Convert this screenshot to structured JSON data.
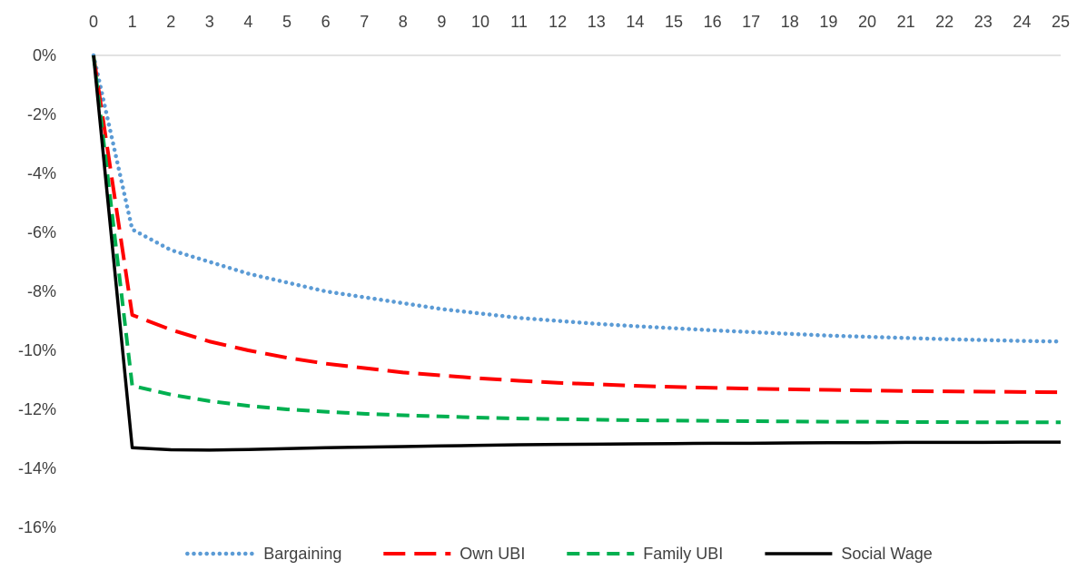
{
  "chart_data": {
    "type": "line",
    "title": "",
    "xlabel": "",
    "ylabel": "",
    "x": [
      0,
      1,
      2,
      3,
      4,
      5,
      6,
      7,
      8,
      9,
      10,
      11,
      12,
      13,
      14,
      15,
      16,
      17,
      18,
      19,
      20,
      21,
      22,
      23,
      24,
      25
    ],
    "x_tick_labels": [
      "0",
      "1",
      "2",
      "3",
      "4",
      "5",
      "6",
      "7",
      "8",
      "9",
      "10",
      "11",
      "12",
      "13",
      "14",
      "15",
      "16",
      "17",
      "18",
      "19",
      "20",
      "21",
      "22",
      "23",
      "24",
      "25"
    ],
    "xlim": [
      0,
      25
    ],
    "x_axis_position": "top",
    "y_tick_values": [
      0,
      -2,
      -4,
      -6,
      -8,
      -10,
      -12,
      -14,
      -16
    ],
    "y_tick_labels": [
      "0%",
      "-2%",
      "-4%",
      "-6%",
      "-8%",
      "-10%",
      "-12%",
      "-14%",
      "-16%"
    ],
    "ylim": [
      -16,
      0
    ],
    "y_unit": "%",
    "grid": false,
    "legend_position": "bottom",
    "series": [
      {
        "name": "Bargaining",
        "color": "#5B9BD5",
        "style": "dotted",
        "values": [
          0,
          -5.9,
          -6.6,
          -7.0,
          -7.4,
          -7.7,
          -8.0,
          -8.2,
          -8.4,
          -8.6,
          -8.75,
          -8.9,
          -9.0,
          -9.1,
          -9.18,
          -9.25,
          -9.32,
          -9.38,
          -9.44,
          -9.5,
          -9.54,
          -9.58,
          -9.62,
          -9.65,
          -9.68,
          -9.7
        ]
      },
      {
        "name": "Own UBI",
        "color": "#FF0000",
        "style": "dashed",
        "values": [
          0,
          -8.8,
          -9.3,
          -9.7,
          -10.0,
          -10.25,
          -10.45,
          -10.6,
          -10.75,
          -10.85,
          -10.95,
          -11.03,
          -11.1,
          -11.15,
          -11.2,
          -11.24,
          -11.27,
          -11.3,
          -11.32,
          -11.34,
          -11.36,
          -11.38,
          -11.39,
          -11.4,
          -11.41,
          -11.42
        ]
      },
      {
        "name": "Family UBI",
        "color": "#00B050",
        "style": "dashed",
        "values": [
          0,
          -11.2,
          -11.5,
          -11.72,
          -11.88,
          -12.0,
          -12.08,
          -12.15,
          -12.2,
          -12.24,
          -12.28,
          -12.31,
          -12.33,
          -12.35,
          -12.37,
          -12.38,
          -12.39,
          -12.4,
          -12.41,
          -12.42,
          -12.42,
          -12.43,
          -12.43,
          -12.44,
          -12.44,
          -12.44
        ]
      },
      {
        "name": "Social Wage",
        "color": "#000000",
        "style": "solid",
        "values": [
          0,
          -13.3,
          -13.37,
          -13.38,
          -13.36,
          -13.33,
          -13.3,
          -13.28,
          -13.26,
          -13.24,
          -13.22,
          -13.2,
          -13.19,
          -13.18,
          -13.17,
          -13.16,
          -13.15,
          -13.15,
          -13.14,
          -13.13,
          -13.13,
          -13.12,
          -13.12,
          -13.12,
          -13.11,
          -13.11
        ]
      }
    ]
  }
}
